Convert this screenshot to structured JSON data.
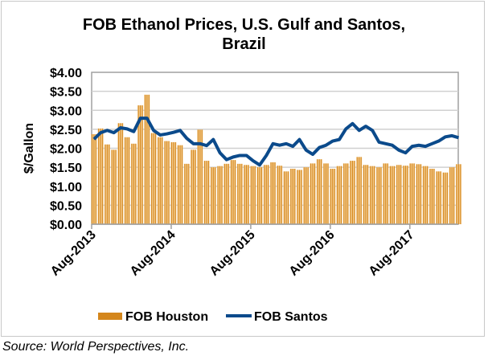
{
  "chart_data": {
    "type": "bar+line",
    "title_line1": "FOB Ethanol Prices, U.S. Gulf and Santos,",
    "title_line2": "Brazil",
    "ylabel": "$/Gallon",
    "xlabel": "",
    "ylim": [
      0,
      4
    ],
    "yticks": [
      "$0.00",
      "$0.50",
      "$1.00",
      "$1.50",
      "$2.00",
      "$2.50",
      "$3.00",
      "$3.50",
      "$4.00"
    ],
    "xticks": [
      "Aug-2013",
      "Aug-2014",
      "Aug-2015",
      "Aug-2016",
      "Aug-2017"
    ],
    "x_start": "Aug-2013",
    "x_end": "Mar-2018",
    "grid": true,
    "legend_placement": "bottom",
    "series": [
      {
        "name": "FOB Houston",
        "kind": "bar",
        "color": "#D4861C",
        "values": [
          2.37,
          2.52,
          2.1,
          1.96,
          2.66,
          2.29,
          2.12,
          3.13,
          3.41,
          2.4,
          2.29,
          2.19,
          2.16,
          2.08,
          1.59,
          1.96,
          2.49,
          1.67,
          1.5,
          1.53,
          1.59,
          1.69,
          1.59,
          1.56,
          1.53,
          1.5,
          1.56,
          1.63,
          1.54,
          1.39,
          1.46,
          1.43,
          1.5,
          1.6,
          1.71,
          1.6,
          1.46,
          1.53,
          1.6,
          1.67,
          1.77,
          1.56,
          1.53,
          1.5,
          1.6,
          1.53,
          1.56,
          1.54,
          1.6,
          1.58,
          1.53,
          1.46,
          1.39,
          1.36,
          1.5,
          1.58
        ]
      },
      {
        "name": "FOB Santos",
        "kind": "line",
        "color": "#0B4A8B",
        "values": [
          2.24,
          2.41,
          2.47,
          2.41,
          2.54,
          2.51,
          2.44,
          2.79,
          2.79,
          2.47,
          2.35,
          2.38,
          2.42,
          2.47,
          2.26,
          2.12,
          2.12,
          2.07,
          2.23,
          1.88,
          1.7,
          1.77,
          1.81,
          1.81,
          1.67,
          1.56,
          1.81,
          2.12,
          2.08,
          2.12,
          2.05,
          2.23,
          1.95,
          1.84,
          2.02,
          2.08,
          2.19,
          2.23,
          2.51,
          2.65,
          2.47,
          2.58,
          2.47,
          2.16,
          2.12,
          2.08,
          1.95,
          1.88,
          2.05,
          2.08,
          2.05,
          2.12,
          2.19,
          2.3,
          2.33,
          2.28
        ]
      }
    ]
  },
  "source": "Source: World Perspectives, Inc."
}
